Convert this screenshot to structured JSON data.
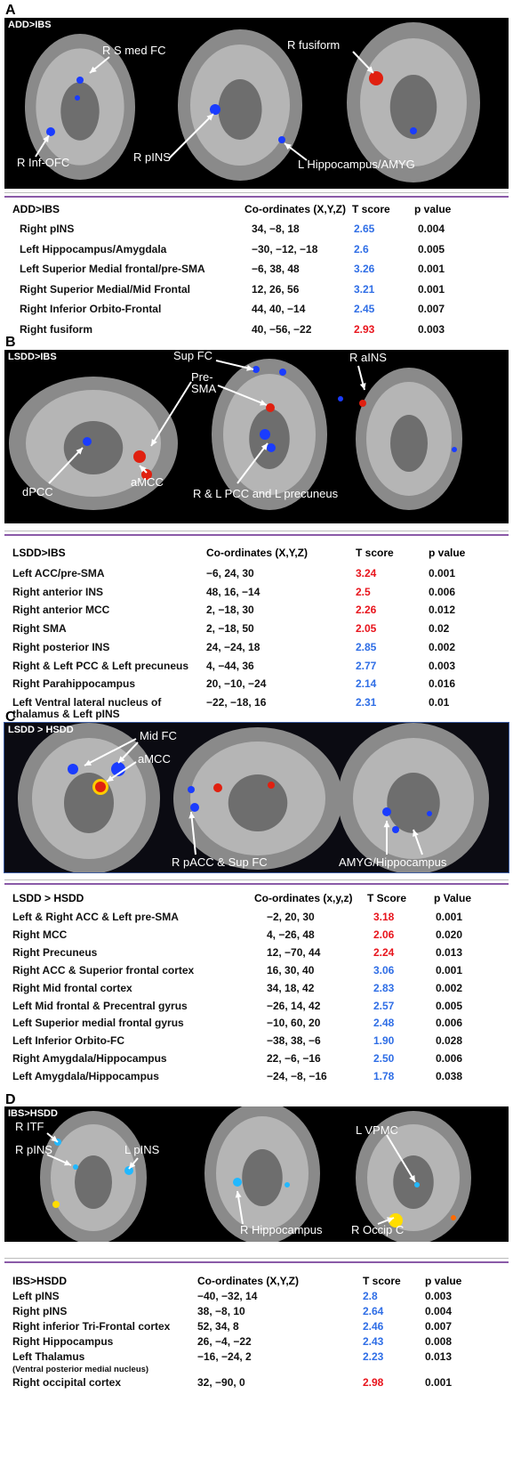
{
  "panels": [
    {
      "letter": "A",
      "image": {
        "contrast": "ADD>IBS",
        "labels": [
          "R S med FC",
          "R fusiform",
          "R Inf-OFC",
          "R pINS",
          "L Hippocampus/AMYG"
        ]
      },
      "table": {
        "headers": [
          "ADD>IBS",
          "Co-ordinates (X,Y,Z)",
          "T score",
          "p value"
        ],
        "rows": [
          {
            "region": "Right pINS",
            "coords": "34, −8, 18",
            "t": "2.65",
            "p": "0.004",
            "t_color": "#2f6ee6"
          },
          {
            "region": "Left Hippocampus/Amygdala",
            "coords": "−30, −12, −18",
            "t": "2.6",
            "p": "0.005",
            "t_color": "#2f6ee6"
          },
          {
            "region": "Left Superior Medial frontal/pre-SMA",
            "coords": "−6, 38, 48",
            "t": "3.26",
            "p": "0.001",
            "t_color": "#2f6ee6"
          },
          {
            "region": "Right Superior Medial/Mid Frontal",
            "coords": "12, 26, 56",
            "t": "3.21",
            "p": "0.001",
            "t_color": "#2f6ee6"
          },
          {
            "region": "Right Inferior Orbito-Frontal",
            "coords": "44, 40, −14",
            "t": "2.45",
            "p": "0.007",
            "t_color": "#2f6ee6"
          },
          {
            "region": "Right fusiform",
            "coords": "40, −56, −22",
            "t": "2.93",
            "p": "0.003",
            "t_color": "#e8141c"
          }
        ]
      }
    },
    {
      "letter": "B",
      "image": {
        "contrast": "LSDD>IBS",
        "labels": [
          "Sup FC",
          "Pre-\nSMA",
          "R aINS",
          "dPCC",
          "aMCC",
          "R & L PCC and L precuneus"
        ]
      },
      "table": {
        "headers": [
          "LSDD>IBS",
          "Co-ordinates (X,Y,Z)",
          "T score",
          "p value"
        ],
        "rows": [
          {
            "region": "Left ACC/pre-SMA",
            "coords": "−6, 24, 30",
            "t": "3.24",
            "p": "0.001",
            "t_color": "#e8141c"
          },
          {
            "region": "Right anterior INS",
            "coords": "48, 16, −14",
            "t": "2.5",
            "p": "0.006",
            "t_color": "#e8141c"
          },
          {
            "region": "Right anterior MCC",
            "coords": "2, −18, 30",
            "t": "2.26",
            "p": "0.012",
            "t_color": "#e8141c"
          },
          {
            "region": "Right SMA",
            "coords": "2, −18, 50",
            "t": "2.05",
            "p": "0.02",
            "t_color": "#e8141c"
          },
          {
            "region": "Right posterior INS",
            "coords": "24, −24, 18",
            "t": "2.85",
            "p": "0.002",
            "t_color": "#2f6ee6"
          },
          {
            "region": "Right & Left PCC & Left precuneus",
            "coords": "4, −44, 36",
            "t": "2.77",
            "p": "0.003",
            "t_color": "#2f6ee6"
          },
          {
            "region": "Right Parahippocampus",
            "coords": "20, −10, −24",
            "t": "2.14",
            "p": "0.016",
            "t_color": "#2f6ee6"
          },
          {
            "region": "Left Ventral lateral nucleus of\nthalamus & Left pINS",
            "coords": "−22, −18, 16",
            "t": "2.31",
            "p": "0.01",
            "t_color": "#2f6ee6"
          }
        ]
      }
    },
    {
      "letter": "C",
      "image": {
        "contrast": "LSDD > HSDD",
        "labels": [
          "Mid FC",
          "aMCC",
          "R pACC & Sup FC",
          "AMYG/Hippocampus"
        ]
      },
      "table": {
        "headers": [
          "LSDD > HSDD",
          "Co-ordinates (x,y,z)",
          "T Score",
          "p Value"
        ],
        "rows": [
          {
            "region": "Left & Right ACC & Left pre-SMA",
            "coords": "−2,  20,  30",
            "t": "3.18",
            "p": "0.001",
            "t_color": "#e8141c"
          },
          {
            "region": "Right MCC",
            "coords": "4, −26,  48",
            "t": "2.06",
            "p": "0.020",
            "t_color": "#e8141c"
          },
          {
            "region": "Right Precuneus",
            "coords": "12, −70, 44",
            "t": "2.24",
            "p": "0.013",
            "t_color": "#e8141c"
          },
          {
            "region": "Right ACC & Superior frontal cortex",
            "coords": "16, 30, 40",
            "t": "3.06",
            "p": "0.001",
            "t_color": "#2f6ee6"
          },
          {
            "region": "Right Mid frontal cortex",
            "coords": "34, 18, 42",
            "t": "2.83",
            "p": "0.002",
            "t_color": "#2f6ee6"
          },
          {
            "region": "Left Mid frontal & Precentral gyrus",
            "coords": "−26, 14, 42",
            "t": "2.57",
            "p": "0.005",
            "t_color": "#2f6ee6"
          },
          {
            "region": "Left Superior medial frontal gyrus",
            "coords": "−10,  60,  20",
            "t": "2.48",
            "p": "0.006",
            "t_color": "#2f6ee6"
          },
          {
            "region": "Left Inferior Orbito-FC",
            "coords": "−38,  38,  −6",
            "t": "1.90",
            "p": "0.028",
            "t_color": "#2f6ee6"
          },
          {
            "region": "Right Amygdala/Hippocampus",
            "coords": "22,  −6, −16",
            "t": "2.50",
            "p": "0.006",
            "t_color": "#2f6ee6"
          },
          {
            "region": "Left Amygdala/Hippocampus",
            "coords": "−24,  −8, −16",
            "t": "1.78",
            "p": "0.038",
            "t_color": "#2f6ee6"
          }
        ]
      }
    },
    {
      "letter": "D",
      "image": {
        "contrast": "IBS>HSDD",
        "labels": [
          "R ITF",
          "R pINS",
          "L pINS",
          "L VPMC",
          "R Hippocampus",
          "R Occip C"
        ]
      },
      "table": {
        "headers": [
          "IBS>HSDD",
          "Co-ordinates (X,Y,Z)",
          "T score",
          "p value"
        ],
        "rows": [
          {
            "region": "Left pINS",
            "coords": "−40, −32, 14",
            "t": "2.8",
            "p": "0.003",
            "t_color": "#2f6ee6"
          },
          {
            "region": "Right pINS",
            "coords": "38, −8, 10",
            "t": "2.64",
            "p": "0.004",
            "t_color": "#2f6ee6"
          },
          {
            "region": "Right inferior Tri-Frontal cortex",
            "coords": "52, 34, 8",
            "t": "2.46",
            "p": "0.007",
            "t_color": "#2f6ee6"
          },
          {
            "region": "Right Hippocampus",
            "coords": "26, −4, −22",
            "t": "2.43",
            "p": "0.008",
            "t_color": "#2f6ee6"
          },
          {
            "region": "Left Thalamus",
            "note": "(Ventral posterior medial nucleus)",
            "coords": "−16, −24, 2",
            "t": "2.23",
            "p": "0.013",
            "t_color": "#2f6ee6"
          },
          {
            "region": "Right occipital cortex",
            "coords": "32, −90, 0",
            "t": "2.98",
            "p": "0.001",
            "t_color": "#e8141c"
          }
        ]
      }
    }
  ]
}
